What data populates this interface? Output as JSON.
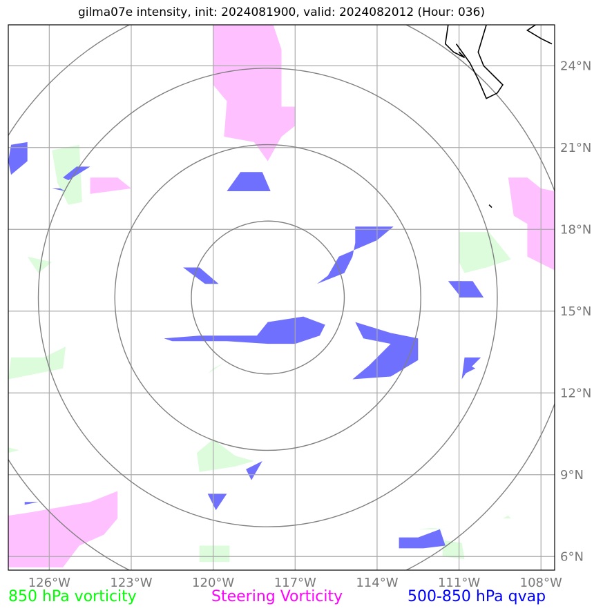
{
  "title": "gilma07e intensity, init: 2024081900, valid: 2024082012 (Hour: 036)",
  "map": {
    "lon_range": [
      -127.5,
      -107.5
    ],
    "lat_range": [
      5.5,
      25.5
    ],
    "lon_ticks": [
      {
        "lon": -126,
        "label": "126°W"
      },
      {
        "lon": -123,
        "label": "123°W"
      },
      {
        "lon": -120,
        "label": "120°W"
      },
      {
        "lon": -117,
        "label": "117°W"
      },
      {
        "lon": -114,
        "label": "114°W"
      },
      {
        "lon": -111,
        "label": "111°W"
      },
      {
        "lon": -108,
        "label": "108°W"
      }
    ],
    "lat_ticks": [
      {
        "lat": 6,
        "label": "6°N"
      },
      {
        "lat": 9,
        "label": "9°N"
      },
      {
        "lat": 12,
        "label": "12°N"
      },
      {
        "lat": 15,
        "label": "15°N"
      },
      {
        "lat": 18,
        "label": "18°N"
      },
      {
        "lat": 21,
        "label": "21°N"
      },
      {
        "lat": 24,
        "label": "24°N"
      }
    ],
    "range_rings_center": {
      "lon": -118.0,
      "lat": 15.5
    },
    "range_rings_radius_deg": [
      2.8,
      5.6,
      8.4,
      11.2
    ],
    "colors": {
      "vort850": "#dcfcdc",
      "steering": "#ffc0ff",
      "qvap": "#7070ff",
      "rings": "#808080",
      "grid": "#aaaaaa",
      "coast": "#000000"
    }
  },
  "fields": {
    "vort850": [
      [
        [
          -125.9,
          20.9
        ],
        [
          -124.9,
          21.1
        ],
        [
          -124.8,
          19.0
        ],
        [
          -125.3,
          18.9
        ],
        [
          -125.7,
          19.7
        ]
      ],
      [
        [
          -126.8,
          17.0
        ],
        [
          -125.9,
          16.8
        ],
        [
          -126.4,
          16.4
        ]
      ],
      [
        [
          -127.5,
          12.5
        ],
        [
          -125.5,
          12.9
        ],
        [
          -125.4,
          13.7
        ],
        [
          -126.2,
          13.3
        ],
        [
          -127.4,
          13.3
        ]
      ],
      [
        [
          -127.5,
          10.0
        ],
        [
          -127.1,
          9.9
        ],
        [
          -127.5,
          9.8
        ]
      ],
      [
        [
          -119.2,
          9.7
        ],
        [
          -118.5,
          9.5
        ],
        [
          -119.2,
          9.3
        ],
        [
          -120.5,
          9.1
        ],
        [
          -120.6,
          9.8
        ],
        [
          -120.0,
          10.3
        ]
      ],
      [
        [
          -120.2,
          12.7
        ],
        [
          -119.6,
          13.1
        ],
        [
          -120.0,
          12.9
        ]
      ],
      [
        [
          -120.5,
          6.4
        ],
        [
          -119.4,
          6.4
        ],
        [
          -119.4,
          5.8
        ],
        [
          -120.5,
          5.8
        ]
      ],
      [
        [
          -111.0,
          17.9
        ],
        [
          -109.9,
          17.9
        ],
        [
          -109.1,
          16.9
        ],
        [
          -110.0,
          16.6
        ],
        [
          -110.8,
          16.4
        ],
        [
          -111.0,
          16.8
        ]
      ],
      [
        [
          -111.6,
          6.6
        ],
        [
          -110.9,
          6.5
        ],
        [
          -110.8,
          5.9
        ],
        [
          -111.6,
          6.0
        ]
      ],
      [
        [
          -109.4,
          7.4
        ],
        [
          -109.1,
          7.4
        ],
        [
          -109.2,
          7.5
        ]
      ],
      [
        [
          -112.5,
          7.0
        ],
        [
          -111.5,
          7.0
        ],
        [
          -112.0,
          7.05
        ]
      ]
    ],
    "steering": [
      [
        [
          -118.7,
          25.5
        ],
        [
          -117.8,
          25.5
        ],
        [
          -117.5,
          24.6
        ],
        [
          -117.5,
          22.5
        ],
        [
          -117.0,
          22.5
        ],
        [
          -117.0,
          21.8
        ],
        [
          -117.5,
          21.4
        ],
        [
          -118.0,
          20.5
        ],
        [
          -118.5,
          21.2
        ],
        [
          -119.6,
          21.4
        ],
        [
          -119.5,
          22.7
        ],
        [
          -120.0,
          23.3
        ],
        [
          -120.0,
          25.5
        ]
      ],
      [
        [
          -124.5,
          19.9
        ],
        [
          -123.5,
          19.9
        ],
        [
          -123.0,
          19.5
        ],
        [
          -124.5,
          19.3
        ]
      ],
      [
        [
          -109.2,
          19.9
        ],
        [
          -108.5,
          19.9
        ],
        [
          -108.0,
          19.5
        ],
        [
          -107.5,
          19.4
        ],
        [
          -107.5,
          16.5
        ],
        [
          -108.5,
          17.0
        ],
        [
          -108.5,
          18.2
        ],
        [
          -109.0,
          18.5
        ]
      ],
      [
        [
          -127.5,
          7.5
        ],
        [
          -126.8,
          7.6
        ],
        [
          -124.5,
          8.0
        ],
        [
          -123.5,
          8.4
        ],
        [
          -123.5,
          7.4
        ],
        [
          -124.0,
          6.8
        ],
        [
          -124.9,
          6.4
        ],
        [
          -125.5,
          5.6
        ],
        [
          -127.5,
          5.6
        ]
      ]
    ],
    "qvap": [
      [
        [
          -127.4,
          21.1
        ],
        [
          -126.8,
          21.2
        ],
        [
          -126.8,
          20.5
        ],
        [
          -127.4,
          20.0
        ],
        [
          -127.5,
          20.5
        ]
      ],
      [
        [
          -125.9,
          19.5
        ],
        [
          -125.4,
          19.4
        ],
        [
          -125.6,
          19.5
        ]
      ],
      [
        [
          -125.5,
          19.9
        ],
        [
          -125.0,
          20.3
        ],
        [
          -124.5,
          20.3
        ],
        [
          -125.3,
          19.8
        ]
      ],
      [
        [
          -119.0,
          20.1
        ],
        [
          -118.2,
          20.1
        ],
        [
          -117.9,
          19.4
        ],
        [
          -119.5,
          19.4
        ]
      ],
      [
        [
          -121.1,
          16.6
        ],
        [
          -120.5,
          16.6
        ],
        [
          -119.8,
          16.0
        ],
        [
          -120.3,
          16.0
        ]
      ],
      [
        [
          -114.8,
          18.1
        ],
        [
          -113.4,
          18.1
        ],
        [
          -114.0,
          17.6
        ],
        [
          -115.4,
          17.0
        ],
        [
          -115.8,
          16.3
        ],
        [
          -116.2,
          16.0
        ],
        [
          -115.2,
          16.4
        ],
        [
          -114.9,
          17.0
        ],
        [
          -114.8,
          17.5
        ]
      ],
      [
        [
          -121.8,
          14.0
        ],
        [
          -120.5,
          14.1
        ],
        [
          -118.4,
          14.1
        ],
        [
          -118.0,
          14.6
        ],
        [
          -116.7,
          14.8
        ],
        [
          -115.9,
          14.5
        ],
        [
          -116.1,
          14.1
        ],
        [
          -117.0,
          13.8
        ],
        [
          -118.0,
          13.8
        ],
        [
          -119.5,
          13.9
        ],
        [
          -121.5,
          13.9
        ]
      ],
      [
        [
          -114.8,
          14.6
        ],
        [
          -113.5,
          14.2
        ],
        [
          -112.5,
          14.0
        ],
        [
          -112.5,
          13.2
        ],
        [
          -113.5,
          12.6
        ],
        [
          -114.9,
          12.5
        ],
        [
          -114.3,
          13.0
        ],
        [
          -113.5,
          13.8
        ],
        [
          -114.5,
          14.0
        ]
      ],
      [
        [
          -110.8,
          13.1
        ],
        [
          -110.4,
          12.9
        ],
        [
          -110.8,
          12.7
        ]
      ],
      [
        [
          -111.1,
          16.1
        ],
        [
          -110.5,
          16.1
        ],
        [
          -110.1,
          15.5
        ],
        [
          -111.0,
          15.5
        ]
      ],
      [
        [
          -110.8,
          13.3
        ],
        [
          -110.2,
          13.3
        ],
        [
          -110.7,
          12.8
        ],
        [
          -110.9,
          12.5
        ]
      ],
      [
        [
          -118.8,
          9.2
        ],
        [
          -118.2,
          9.5
        ],
        [
          -118.6,
          8.8
        ]
      ],
      [
        [
          -120.2,
          8.3
        ],
        [
          -119.5,
          8.3
        ],
        [
          -119.9,
          7.7
        ]
      ],
      [
        [
          -126.9,
          8.0
        ],
        [
          -126.4,
          8.0
        ],
        [
          -126.9,
          7.9
        ]
      ],
      [
        [
          -113.2,
          6.7
        ],
        [
          -112.5,
          6.7
        ],
        [
          -111.7,
          7.0
        ],
        [
          -111.5,
          6.4
        ],
        [
          -112.3,
          6.3
        ],
        [
          -113.2,
          6.3
        ]
      ],
      [
        [
          -111.4,
          16.1
        ],
        [
          -110.9,
          16.1
        ],
        [
          -111.0,
          15.6
        ]
      ]
    ],
    "coastline": [
      [
        [
          -111.4,
          25.5
        ],
        [
          -111.5,
          24.8
        ],
        [
          -111.2,
          24.5
        ],
        [
          -110.8,
          24.3
        ],
        [
          -111.0,
          24.5
        ]
      ],
      [
        [
          -110.0,
          25.5
        ],
        [
          -110.3,
          24.5
        ],
        [
          -110.1,
          24.0
        ],
        [
          -109.7,
          23.6
        ],
        [
          -109.4,
          23.3
        ],
        [
          -109.6,
          23.0
        ],
        [
          -110.0,
          22.8
        ],
        [
          -110.3,
          23.5
        ],
        [
          -110.6,
          24.1
        ],
        [
          -111.1,
          24.8
        ]
      ],
      [
        [
          -108.2,
          25.5
        ],
        [
          -108.5,
          25.3
        ],
        [
          -108.0,
          25.0
        ],
        [
          -107.6,
          24.8
        ]
      ],
      [
        [
          -109.9,
          18.9
        ],
        [
          -109.8,
          18.8
        ]
      ]
    ]
  },
  "legend": {
    "vort850": {
      "label": "850 hPa vorticity",
      "color": "#00ff00"
    },
    "steering": {
      "label": "Steering Vorticity",
      "color": "#ff00ff"
    },
    "qvap": {
      "label": "500-850 hPa qvap",
      "color": "#0000ff"
    }
  }
}
